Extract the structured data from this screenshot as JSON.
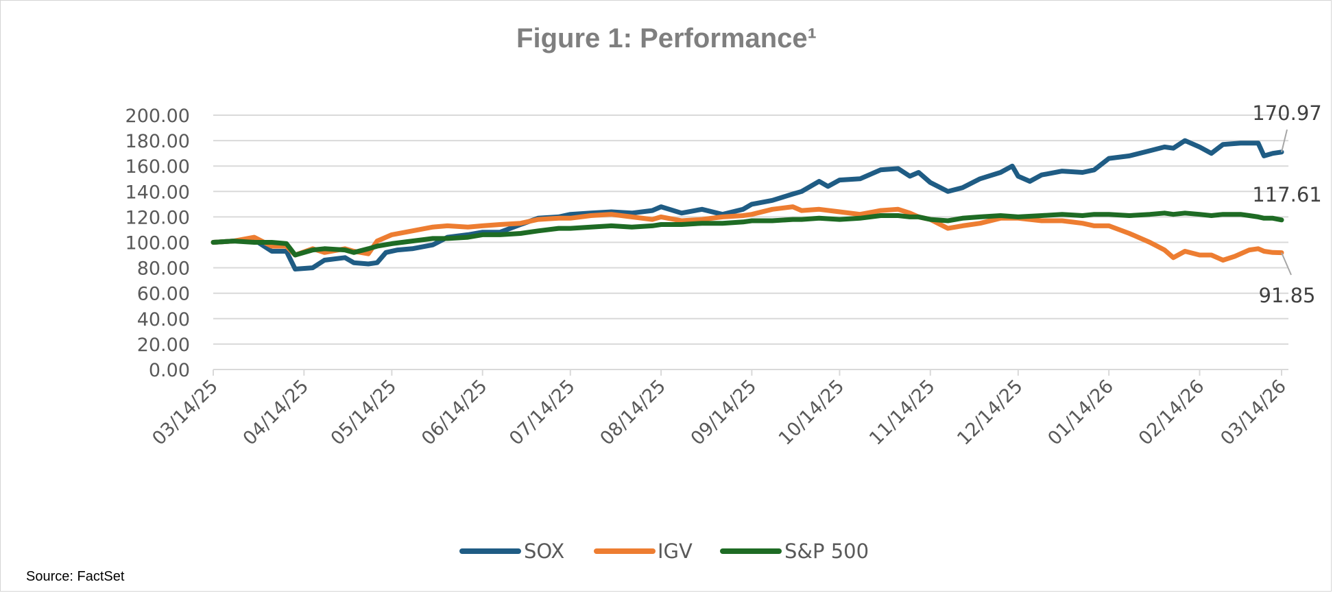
{
  "source": "Source: FactSet",
  "chart_data": {
    "type": "line",
    "title": "Figure 1: Performance¹",
    "xlabel": "",
    "ylabel": "",
    "ylim": [
      0,
      200
    ],
    "yticks": [
      "0.00",
      "20.00",
      "40.00",
      "60.00",
      "80.00",
      "100.00",
      "120.00",
      "140.00",
      "160.00",
      "180.00",
      "200.00"
    ],
    "xticks": [
      "03/14/25",
      "04/14/25",
      "05/14/25",
      "06/14/25",
      "07/14/25",
      "08/14/25",
      "09/14/25",
      "10/14/25",
      "11/14/25",
      "12/14/25",
      "01/14/26",
      "02/14/26",
      "03/14/26"
    ],
    "grid": true,
    "legend_position": "bottom",
    "series": [
      {
        "name": "SOX",
        "color": "#1f5c84",
        "end_label": "170.97",
        "points": [
          [
            "03/14/25",
            100
          ],
          [
            "03/21/25",
            101
          ],
          [
            "03/28/25",
            102
          ],
          [
            "04/03/25",
            93
          ],
          [
            "04/08/25",
            93
          ],
          [
            "04/11/25",
            79
          ],
          [
            "04/17/25",
            80
          ],
          [
            "04/21/25",
            86
          ],
          [
            "04/28/25",
            88
          ],
          [
            "05/01/25",
            84
          ],
          [
            "05/06/25",
            83
          ],
          [
            "05/09/25",
            84
          ],
          [
            "05/12/25",
            92
          ],
          [
            "05/16/25",
            94
          ],
          [
            "05/21/25",
            95
          ],
          [
            "05/28/25",
            98
          ],
          [
            "06/02/25",
            104
          ],
          [
            "06/09/25",
            106
          ],
          [
            "06/14/25",
            108
          ],
          [
            "06/20/25",
            108
          ],
          [
            "06/27/25",
            114
          ],
          [
            "07/03/25",
            119
          ],
          [
            "07/10/25",
            120
          ],
          [
            "07/14/25",
            122
          ],
          [
            "07/21/25",
            123
          ],
          [
            "07/28/25",
            124
          ],
          [
            "08/04/25",
            123
          ],
          [
            "08/11/25",
            125
          ],
          [
            "08/14/25",
            128
          ],
          [
            "08/21/25",
            123
          ],
          [
            "08/28/25",
            126
          ],
          [
            "09/04/25",
            122
          ],
          [
            "09/11/25",
            126
          ],
          [
            "09/14/25",
            130
          ],
          [
            "09/21/25",
            133
          ],
          [
            "09/28/25",
            138
          ],
          [
            "10/01/25",
            140
          ],
          [
            "10/07/25",
            148
          ],
          [
            "10/10/25",
            144
          ],
          [
            "10/14/25",
            149
          ],
          [
            "10/21/25",
            150
          ],
          [
            "10/28/25",
            157
          ],
          [
            "11/03/25",
            158
          ],
          [
            "11/07/25",
            152
          ],
          [
            "11/10/25",
            155
          ],
          [
            "11/14/25",
            147
          ],
          [
            "11/20/25",
            140
          ],
          [
            "11/25/25",
            143
          ],
          [
            "12/01/25",
            150
          ],
          [
            "12/08/25",
            155
          ],
          [
            "12/12/25",
            160
          ],
          [
            "12/14/25",
            152
          ],
          [
            "12/18/25",
            148
          ],
          [
            "12/22/25",
            153
          ],
          [
            "12/29/25",
            156
          ],
          [
            "01/05/26",
            155
          ],
          [
            "01/09/26",
            157
          ],
          [
            "01/14/26",
            166
          ],
          [
            "01/21/26",
            168
          ],
          [
            "01/28/26",
            172
          ],
          [
            "02/02/26",
            175
          ],
          [
            "02/05/26",
            174
          ],
          [
            "02/09/26",
            180
          ],
          [
            "02/14/26",
            175
          ],
          [
            "02/18/26",
            170
          ],
          [
            "02/22/26",
            177
          ],
          [
            "02/28/26",
            178
          ],
          [
            "03/03/26",
            178
          ],
          [
            "03/06/26",
            178
          ],
          [
            "03/08/26",
            168
          ],
          [
            "03/11/26",
            170
          ],
          [
            "03/14/26",
            171
          ]
        ]
      },
      {
        "name": "IGV",
        "color": "#ed7d31",
        "end_label": "91.85",
        "points": [
          [
            "03/14/25",
            100
          ],
          [
            "03/21/25",
            101
          ],
          [
            "03/28/25",
            104
          ],
          [
            "04/03/25",
            97
          ],
          [
            "04/08/25",
            97
          ],
          [
            "04/11/25",
            90
          ],
          [
            "04/17/25",
            95
          ],
          [
            "04/21/25",
            92
          ],
          [
            "04/28/25",
            95
          ],
          [
            "05/01/25",
            93
          ],
          [
            "05/06/25",
            91
          ],
          [
            "05/09/25",
            101
          ],
          [
            "05/14/25",
            106
          ],
          [
            "05/21/25",
            109
          ],
          [
            "05/28/25",
            112
          ],
          [
            "06/02/25",
            113
          ],
          [
            "06/09/25",
            112
          ],
          [
            "06/14/25",
            113
          ],
          [
            "06/20/25",
            114
          ],
          [
            "06/27/25",
            115
          ],
          [
            "07/03/25",
            118
          ],
          [
            "07/10/25",
            119
          ],
          [
            "07/14/25",
            119
          ],
          [
            "07/21/25",
            121
          ],
          [
            "07/28/25",
            122
          ],
          [
            "08/04/25",
            120
          ],
          [
            "08/11/25",
            118
          ],
          [
            "08/14/25",
            120
          ],
          [
            "08/21/25",
            117
          ],
          [
            "08/28/25",
            118
          ],
          [
            "09/04/25",
            120
          ],
          [
            "09/11/25",
            121
          ],
          [
            "09/14/25",
            122
          ],
          [
            "09/21/25",
            126
          ],
          [
            "09/28/25",
            128
          ],
          [
            "10/01/25",
            125
          ],
          [
            "10/07/25",
            126
          ],
          [
            "10/14/25",
            124
          ],
          [
            "10/21/25",
            122
          ],
          [
            "10/28/25",
            125
          ],
          [
            "11/03/25",
            126
          ],
          [
            "11/07/25",
            123
          ],
          [
            "11/10/25",
            120
          ],
          [
            "11/14/25",
            118
          ],
          [
            "11/20/25",
            111
          ],
          [
            "11/25/25",
            113
          ],
          [
            "12/01/25",
            115
          ],
          [
            "12/08/25",
            119
          ],
          [
            "12/14/25",
            119
          ],
          [
            "12/22/25",
            117
          ],
          [
            "12/29/25",
            117
          ],
          [
            "01/05/26",
            115
          ],
          [
            "01/09/26",
            113
          ],
          [
            "01/14/26",
            113
          ],
          [
            "01/21/26",
            107
          ],
          [
            "01/28/26",
            100
          ],
          [
            "02/02/26",
            94
          ],
          [
            "02/05/26",
            88
          ],
          [
            "02/09/26",
            93
          ],
          [
            "02/14/26",
            90
          ],
          [
            "02/18/26",
            90
          ],
          [
            "02/22/26",
            86
          ],
          [
            "02/26/26",
            89
          ],
          [
            "03/03/26",
            94
          ],
          [
            "03/06/26",
            95
          ],
          [
            "03/08/26",
            93
          ],
          [
            "03/11/26",
            92
          ],
          [
            "03/14/26",
            91.85
          ]
        ]
      },
      {
        "name": "S&P 500",
        "color": "#1e6b24",
        "end_label": "117.61",
        "points": [
          [
            "03/14/25",
            100
          ],
          [
            "03/21/25",
            101
          ],
          [
            "03/28/25",
            100
          ],
          [
            "04/03/25",
            100
          ],
          [
            "04/08/25",
            99
          ],
          [
            "04/11/25",
            90
          ],
          [
            "04/17/25",
            94
          ],
          [
            "04/21/25",
            95
          ],
          [
            "04/28/25",
            94
          ],
          [
            "05/01/25",
            92
          ],
          [
            "05/06/25",
            95
          ],
          [
            "05/09/25",
            97
          ],
          [
            "05/14/25",
            99
          ],
          [
            "05/21/25",
            101
          ],
          [
            "05/28/25",
            103
          ],
          [
            "06/02/25",
            103
          ],
          [
            "06/09/25",
            104
          ],
          [
            "06/14/25",
            106
          ],
          [
            "06/20/25",
            106
          ],
          [
            "06/27/25",
            107
          ],
          [
            "07/03/25",
            109
          ],
          [
            "07/10/25",
            111
          ],
          [
            "07/14/25",
            111
          ],
          [
            "07/21/25",
            112
          ],
          [
            "07/28/25",
            113
          ],
          [
            "08/04/25",
            112
          ],
          [
            "08/11/25",
            113
          ],
          [
            "08/14/25",
            114
          ],
          [
            "08/21/25",
            114
          ],
          [
            "08/28/25",
            115
          ],
          [
            "09/04/25",
            115
          ],
          [
            "09/11/25",
            116
          ],
          [
            "09/14/25",
            117
          ],
          [
            "09/21/25",
            117
          ],
          [
            "09/28/25",
            118
          ],
          [
            "10/01/25",
            118
          ],
          [
            "10/07/25",
            119
          ],
          [
            "10/14/25",
            118
          ],
          [
            "10/21/25",
            119
          ],
          [
            "10/28/25",
            121
          ],
          [
            "11/03/25",
            121
          ],
          [
            "11/07/25",
            120
          ],
          [
            "11/10/25",
            120
          ],
          [
            "11/14/25",
            118
          ],
          [
            "11/20/25",
            117
          ],
          [
            "11/25/25",
            119
          ],
          [
            "12/01/25",
            120
          ],
          [
            "12/08/25",
            121
          ],
          [
            "12/14/25",
            120
          ],
          [
            "12/22/25",
            121
          ],
          [
            "12/29/25",
            122
          ],
          [
            "01/05/26",
            121
          ],
          [
            "01/09/26",
            122
          ],
          [
            "01/14/26",
            122
          ],
          [
            "01/21/26",
            121
          ],
          [
            "01/28/26",
            122
          ],
          [
            "02/02/26",
            123
          ],
          [
            "02/05/26",
            122
          ],
          [
            "02/09/26",
            123
          ],
          [
            "02/14/26",
            122
          ],
          [
            "02/18/26",
            121
          ],
          [
            "02/22/26",
            122
          ],
          [
            "02/28/26",
            122
          ],
          [
            "03/03/26",
            121
          ],
          [
            "03/06/26",
            120
          ],
          [
            "03/08/26",
            119
          ],
          [
            "03/11/26",
            119
          ],
          [
            "03/14/26",
            117.61
          ]
        ]
      }
    ]
  }
}
